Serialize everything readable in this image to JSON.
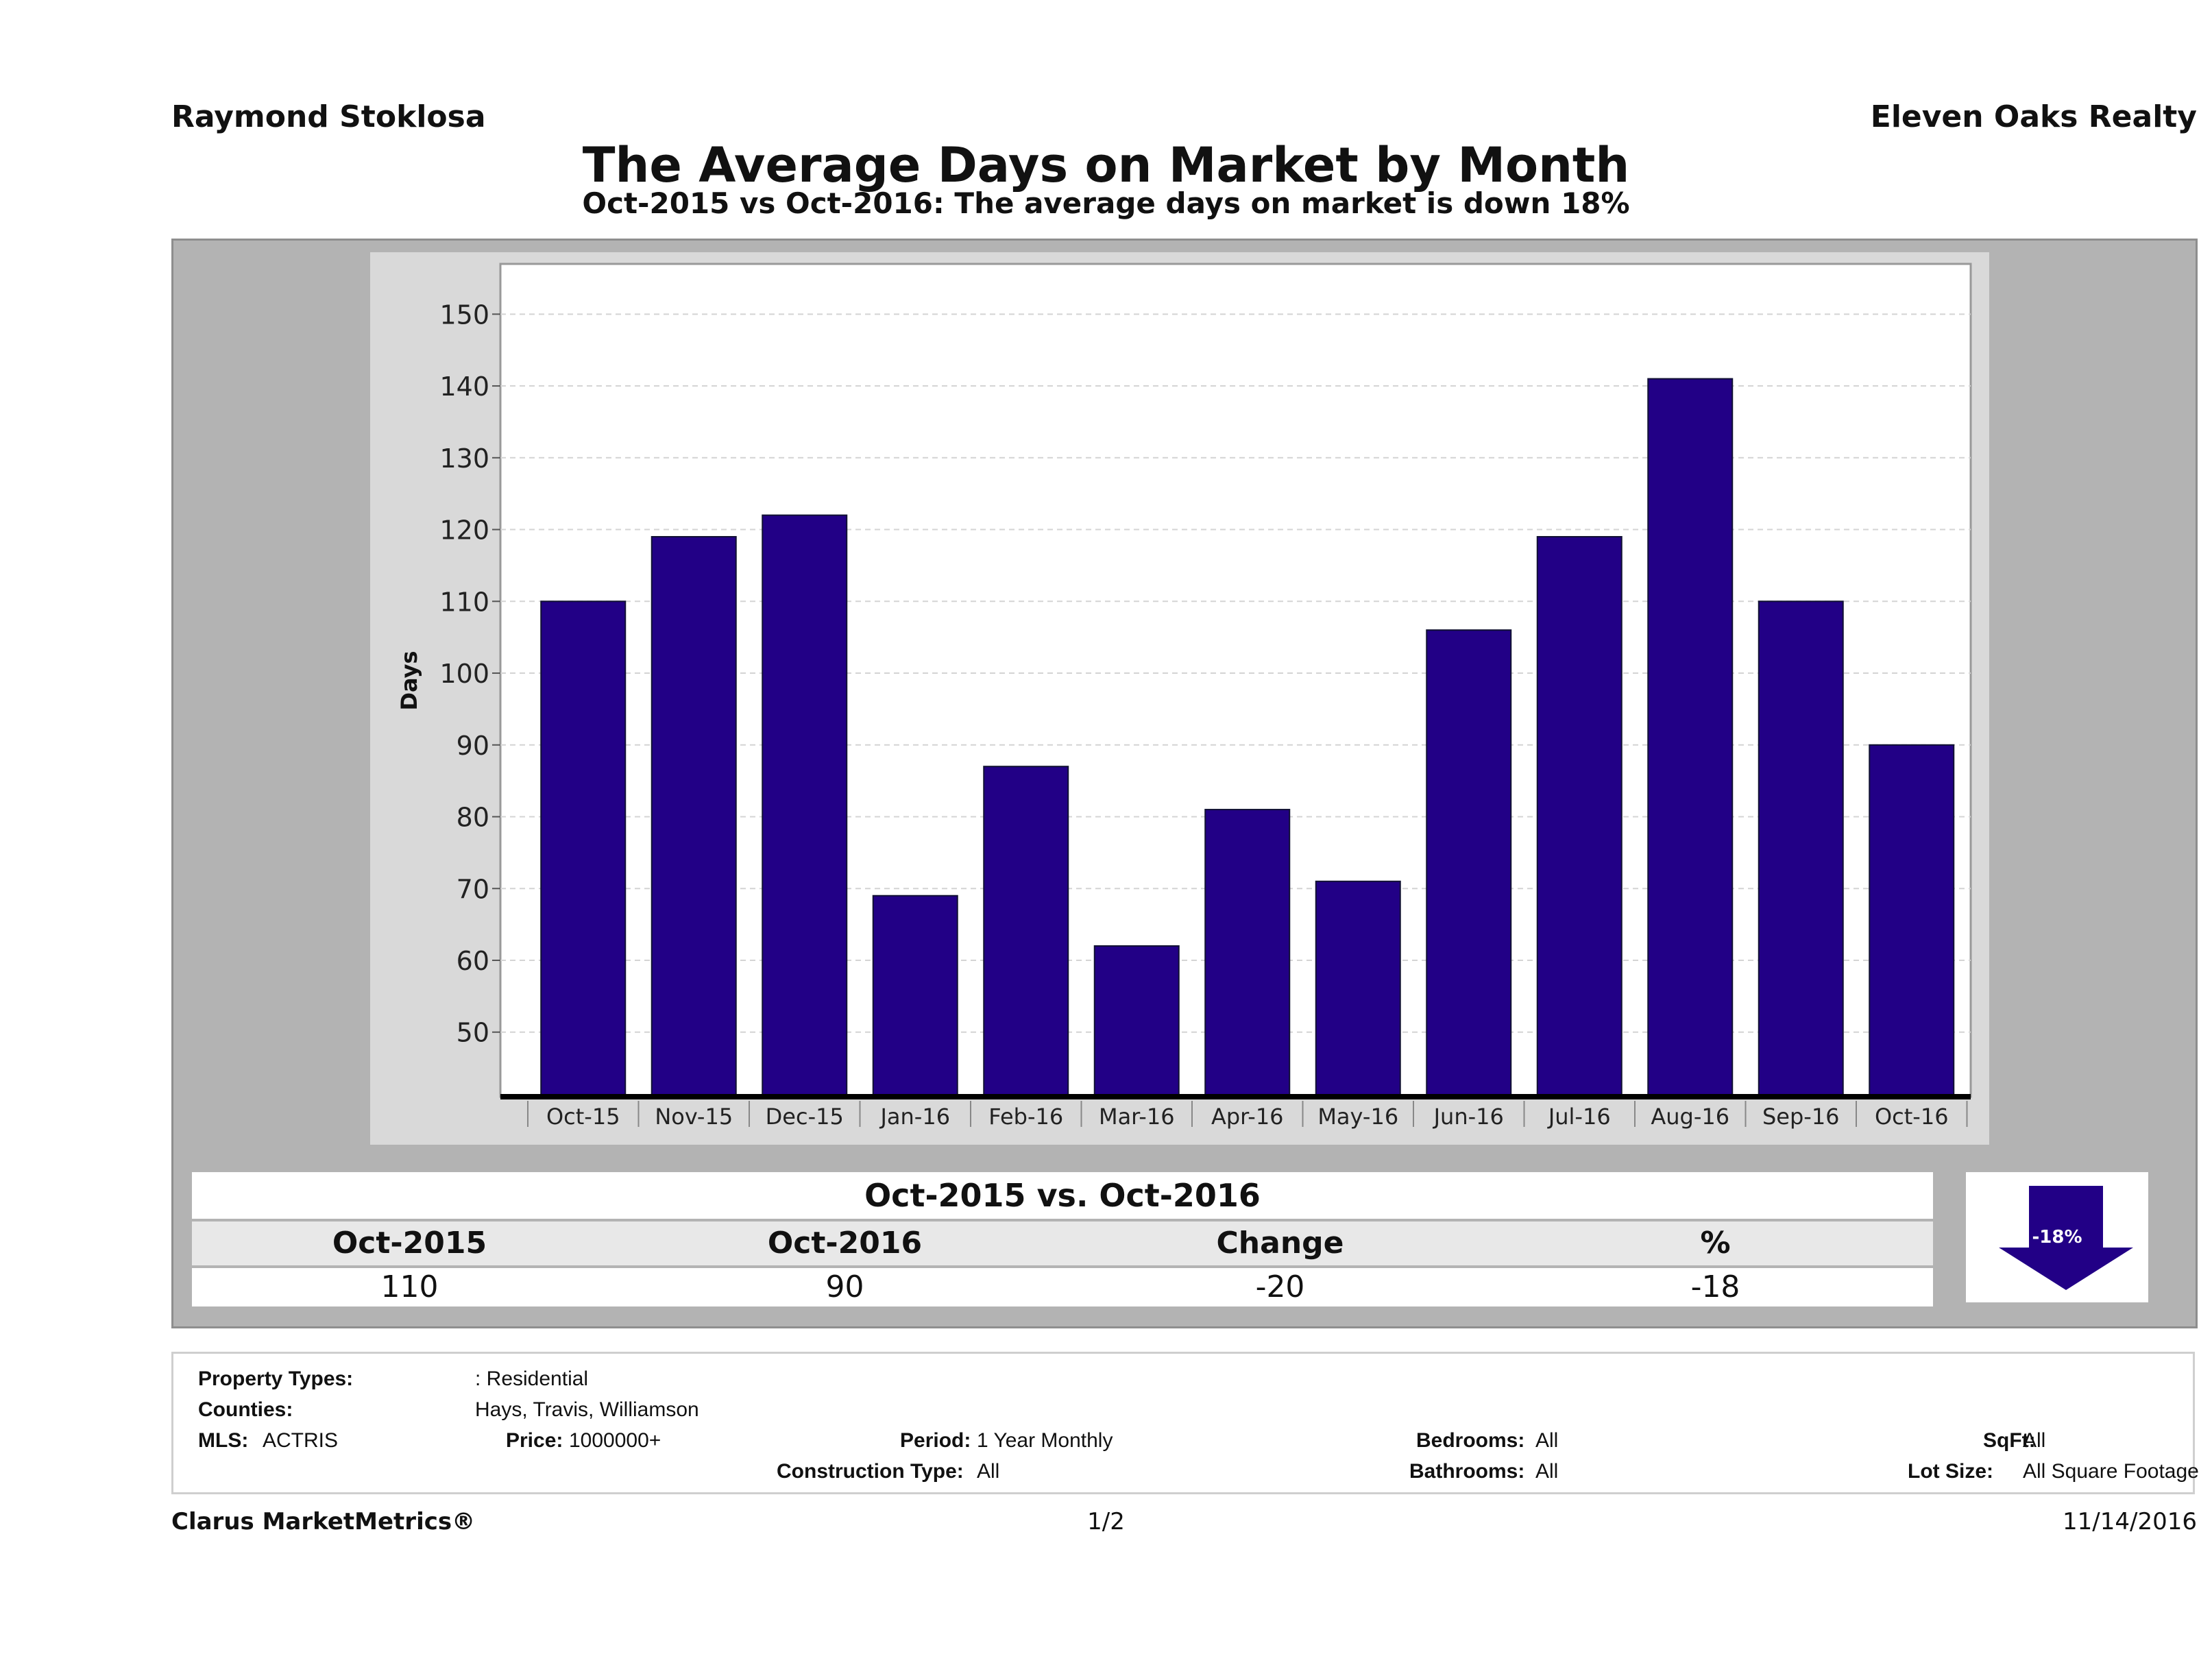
{
  "header": {
    "agent": "Raymond Stoklosa",
    "brokerage": "Eleven Oaks Realty",
    "title": "The Average Days on Market by Month",
    "subtitle": "Oct-2015 vs Oct-2016: The average days on market is down 18%"
  },
  "chart_data": {
    "type": "bar",
    "categories": [
      "Oct-15",
      "Nov-15",
      "Dec-15",
      "Jan-16",
      "Feb-16",
      "Mar-16",
      "Apr-16",
      "May-16",
      "Jun-16",
      "Jul-16",
      "Aug-16",
      "Sep-16",
      "Oct-16"
    ],
    "values": [
      110,
      119,
      122,
      69,
      87,
      62,
      81,
      71,
      106,
      119,
      141,
      110,
      90
    ],
    "ylabel": "Days",
    "yticks": [
      50,
      60,
      70,
      80,
      90,
      100,
      110,
      120,
      130,
      140,
      150
    ],
    "ylim": [
      41,
      157
    ],
    "grid": true,
    "bar_color": "#220086"
  },
  "comparison": {
    "heading": "Oct-2015 vs. Oct-2016",
    "labels": [
      "Oct-2015",
      "Oct-2016",
      "Change",
      "%"
    ],
    "values": [
      "110",
      "90",
      "-20",
      "-18"
    ],
    "badge": "-18%",
    "arrow_icon": "down-arrow-icon"
  },
  "criteria": {
    "property_types_label": "Property Types:",
    "property_types_value": ": Residential",
    "counties_label": "Counties:",
    "counties_value": "Hays, Travis, Williamson",
    "mls_label": "MLS:",
    "mls_value": "ACTRIS",
    "price_label": "Price:",
    "price_value": "1000000+",
    "period_label": "Period:",
    "period_value": "1 Year Monthly",
    "construction_label": "Construction Type:",
    "construction_value": "All",
    "bedrooms_label": "Bedrooms:",
    "bedrooms_value": "All",
    "bathrooms_label": "Bathrooms:",
    "bathrooms_value": "All",
    "sqft_label": "SqFt:",
    "sqft_value": "All",
    "lotsize_label": "Lot Size:",
    "lotsize_value": "All Square Footage"
  },
  "footer": {
    "brand": "Clarus MarketMetrics®",
    "page": "1/2",
    "date": "11/14/2016"
  }
}
